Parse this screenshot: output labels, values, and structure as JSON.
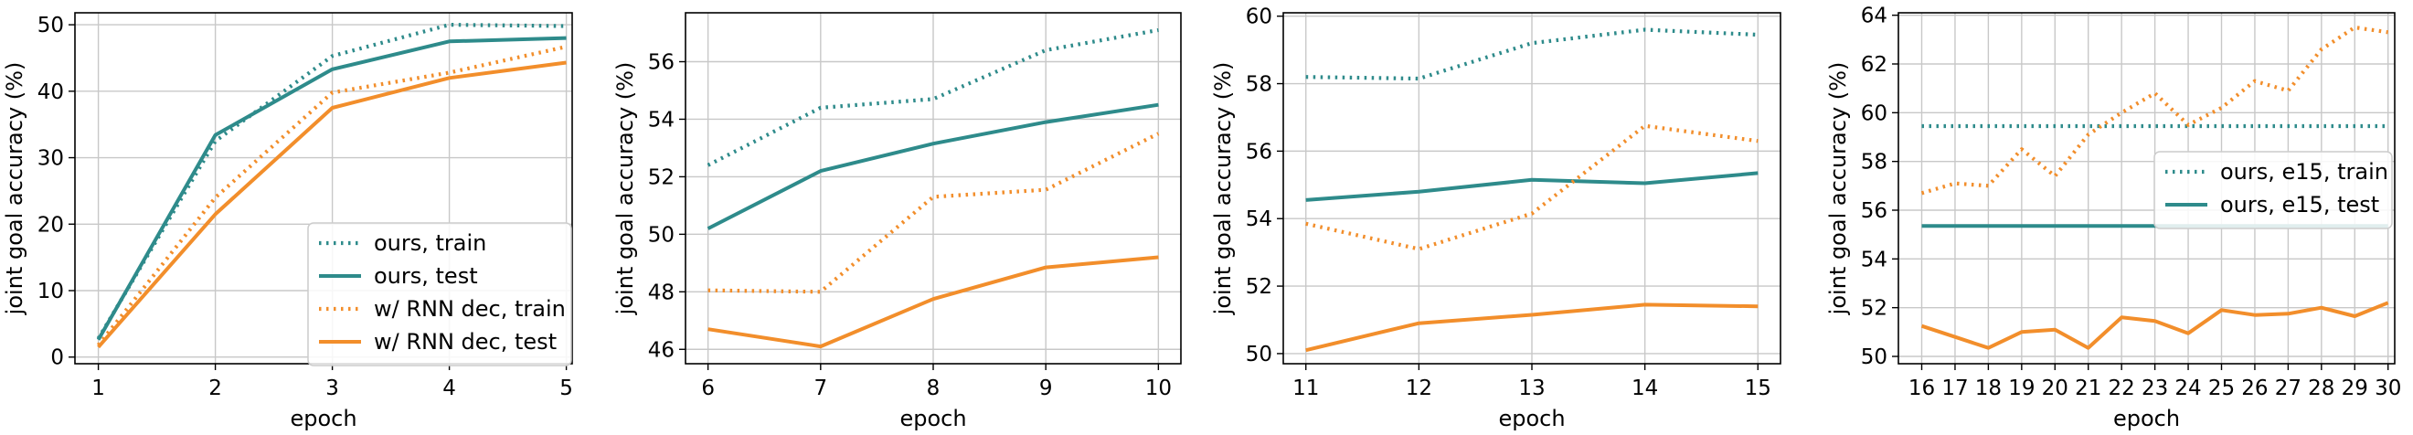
{
  "colors": {
    "ours": "#2E8B8B",
    "rnn": "#F28E2B",
    "grid": "#c8c8c8",
    "legend_border": "#cccccc"
  },
  "chart_data": [
    {
      "type": "line",
      "title": "",
      "xlabel": "epoch",
      "ylabel": "joint goal accuracy (%)",
      "x": [
        1,
        2,
        3,
        4,
        5
      ],
      "xticks": [
        1,
        2,
        3,
        4,
        5
      ],
      "xtick_labels": [
        "1",
        "2",
        "3",
        "4",
        "5"
      ],
      "xlim": [
        0.8,
        5.05
      ],
      "yticks": [
        0,
        10,
        20,
        30,
        40,
        50
      ],
      "ytick_labels": [
        "0",
        "10",
        "20",
        "30",
        "40",
        "50"
      ],
      "ylim": [
        -1,
        51.8
      ],
      "grid": true,
      "legend": "lower-right",
      "series": [
        {
          "name": "ours, train",
          "color": "ours",
          "style": "dotted",
          "values": [
            2.8,
            32.5,
            45.3,
            50.0,
            49.8
          ]
        },
        {
          "name": "ours, test",
          "color": "ours",
          "style": "solid",
          "values": [
            2.6,
            33.4,
            43.3,
            47.5,
            48.0
          ]
        },
        {
          "name": "w/ RNN dec, train",
          "color": "rnn",
          "style": "dotted",
          "values": [
            1.8,
            24.0,
            39.8,
            42.8,
            46.7
          ]
        },
        {
          "name": "w/ RNN dec, test",
          "color": "rnn",
          "style": "solid",
          "values": [
            1.5,
            21.5,
            37.5,
            42.0,
            44.3
          ]
        }
      ]
    },
    {
      "type": "line",
      "title": "",
      "xlabel": "epoch",
      "ylabel": "joint goal accuracy (%)",
      "x": [
        6,
        7,
        8,
        9,
        10
      ],
      "xticks": [
        6,
        7,
        8,
        9,
        10
      ],
      "xtick_labels": [
        "6",
        "7",
        "8",
        "9",
        "10"
      ],
      "xlim": [
        5.8,
        10.2
      ],
      "yticks": [
        46,
        48,
        50,
        52,
        54,
        56
      ],
      "ytick_labels": [
        "46",
        "48",
        "50",
        "52",
        "54",
        "56"
      ],
      "ylim": [
        45.5,
        57.7
      ],
      "grid": true,
      "legend": "none",
      "series": [
        {
          "name": "ours, train",
          "color": "ours",
          "style": "dotted",
          "values": [
            52.4,
            54.4,
            54.7,
            56.4,
            57.1
          ]
        },
        {
          "name": "ours, test",
          "color": "ours",
          "style": "solid",
          "values": [
            50.2,
            52.2,
            53.15,
            53.9,
            54.5
          ]
        },
        {
          "name": "w/ RNN dec, train",
          "color": "rnn",
          "style": "dotted",
          "values": [
            48.05,
            48.0,
            51.3,
            51.55,
            53.5
          ]
        },
        {
          "name": "w/ RNN dec, test",
          "color": "rnn",
          "style": "solid",
          "values": [
            46.7,
            46.1,
            47.75,
            48.85,
            49.2
          ]
        }
      ]
    },
    {
      "type": "line",
      "title": "",
      "xlabel": "epoch",
      "ylabel": "joint goal accuracy (%)",
      "x": [
        11,
        12,
        13,
        14,
        15
      ],
      "xticks": [
        11,
        12,
        13,
        14,
        15
      ],
      "xtick_labels": [
        "11",
        "12",
        "13",
        "14",
        "15"
      ],
      "xlim": [
        10.8,
        15.2
      ],
      "yticks": [
        50,
        52,
        54,
        56,
        58,
        60
      ],
      "ytick_labels": [
        "50",
        "52",
        "54",
        "56",
        "58",
        "60"
      ],
      "ylim": [
        49.7,
        60.1
      ],
      "grid": true,
      "legend": "none",
      "series": [
        {
          "name": "ours, train",
          "color": "ours",
          "style": "dotted",
          "values": [
            58.2,
            58.15,
            59.2,
            59.6,
            59.45
          ]
        },
        {
          "name": "ours, test",
          "color": "ours",
          "style": "solid",
          "values": [
            54.55,
            54.8,
            55.15,
            55.05,
            55.35
          ]
        },
        {
          "name": "w/ RNN dec, train",
          "color": "rnn",
          "style": "dotted",
          "values": [
            53.85,
            53.1,
            54.15,
            56.75,
            56.3
          ]
        },
        {
          "name": "w/ RNN dec, test",
          "color": "rnn",
          "style": "solid",
          "values": [
            50.1,
            50.9,
            51.15,
            51.45,
            51.4
          ]
        }
      ]
    },
    {
      "type": "line",
      "title": "",
      "xlabel": "epoch",
      "ylabel": "joint goal accuracy (%)",
      "x": [
        16,
        17,
        18,
        19,
        20,
        21,
        22,
        23,
        24,
        25,
        26,
        27,
        28,
        29,
        30
      ],
      "xticks": [
        16,
        17,
        18,
        19,
        20,
        21,
        22,
        23,
        24,
        25,
        26,
        27,
        28,
        29,
        30
      ],
      "xtick_labels": [
        "16",
        "17",
        "18",
        "19",
        "20",
        "21",
        "22",
        "23",
        "24",
        "25",
        "26",
        "27",
        "28",
        "29",
        "30"
      ],
      "xlim": [
        15.3,
        30.2
      ],
      "yticks": [
        50,
        52,
        54,
        56,
        58,
        60,
        62,
        64
      ],
      "ytick_labels": [
        "50",
        "52",
        "54",
        "56",
        "58",
        "60",
        "62",
        "64"
      ],
      "ylim": [
        49.7,
        64.1
      ],
      "grid": true,
      "legend": "center-right",
      "series": [
        {
          "name": "ours, e15, train",
          "color": "ours",
          "style": "dotted",
          "values": [
            59.45,
            59.45,
            59.45,
            59.45,
            59.45,
            59.45,
            59.45,
            59.45,
            59.45,
            59.45,
            59.45,
            59.45,
            59.45,
            59.45,
            59.45
          ]
        },
        {
          "name": "ours, e15, test",
          "color": "ours",
          "style": "solid",
          "values": [
            55.35,
            55.35,
            55.35,
            55.35,
            55.35,
            55.35,
            55.35,
            55.35,
            55.35,
            55.35,
            55.35,
            55.35,
            55.35,
            55.35,
            55.35
          ]
        },
        {
          "color": "rnn",
          "style": "dotted",
          "values": [
            56.7,
            57.1,
            57.0,
            58.5,
            57.4,
            59.1,
            60.0,
            60.8,
            59.5,
            60.2,
            61.3,
            60.9,
            62.6,
            63.5,
            63.3
          ]
        },
        {
          "color": "rnn",
          "style": "solid",
          "values": [
            51.25,
            50.8,
            50.35,
            51.0,
            51.1,
            50.35,
            51.6,
            51.45,
            50.95,
            51.9,
            51.7,
            51.75,
            52.0,
            51.65,
            52.2
          ]
        }
      ]
    }
  ]
}
